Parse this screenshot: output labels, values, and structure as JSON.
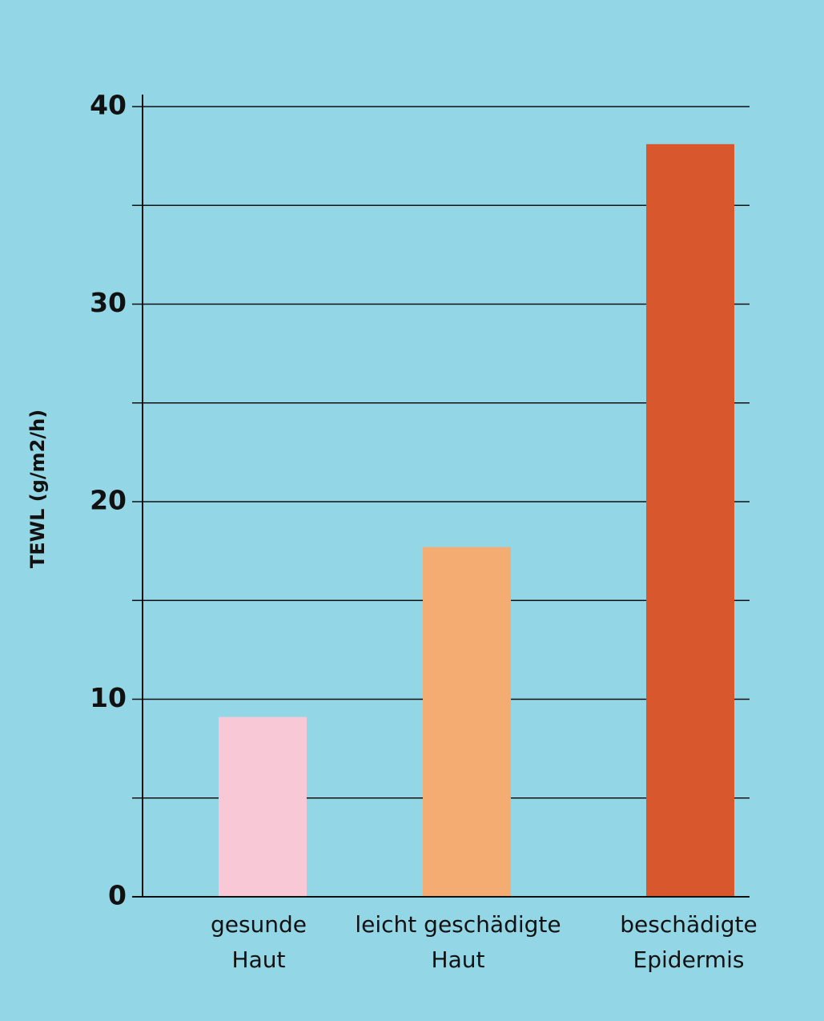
{
  "chart_data": {
    "type": "bar",
    "y_label": "TEWL (g/m2/h)",
    "categories": [
      "gesunde\nHaut",
      "leicht geschädigte\nHaut",
      "beschädigte\nEpidermis"
    ],
    "values": [
      9.1,
      17.7,
      38.1
    ],
    "colors": [
      "#f9c8d6",
      "#f4ac72",
      "#d8572d"
    ],
    "ylim": [
      0,
      40
    ],
    "yticks": [
      0,
      10,
      20,
      30,
      40
    ],
    "minor_yticks": [
      5,
      15,
      25,
      35
    ],
    "grid": true
  }
}
